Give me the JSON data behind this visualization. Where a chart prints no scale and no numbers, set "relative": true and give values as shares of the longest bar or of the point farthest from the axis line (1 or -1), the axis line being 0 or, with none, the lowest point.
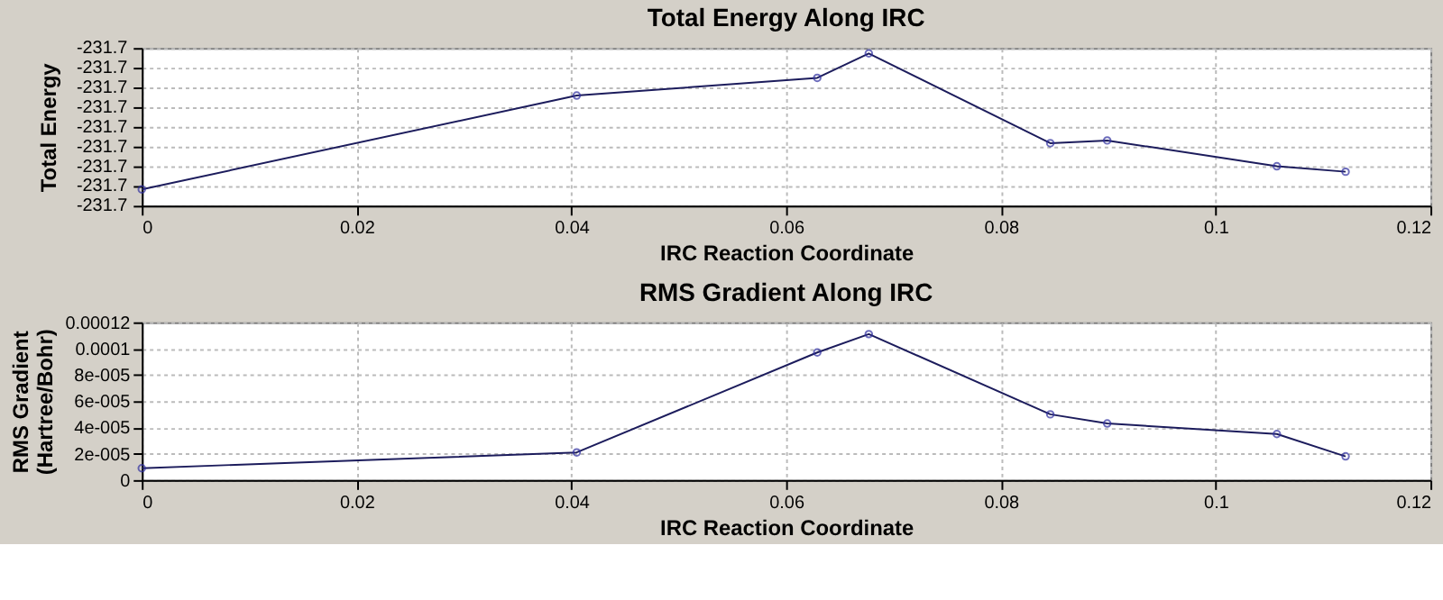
{
  "chart_data": [
    {
      "type": "line",
      "title": "Total Energy Along IRC",
      "xlabel": "IRC Reaction Coordinate",
      "ylabel": "Total Energy",
      "relative": true,
      "annotations": [
        "-231.7",
        "-231.7",
        "-231.7",
        "-231.7",
        "-231.7",
        "-231.7",
        "-231.7",
        "-231.7",
        "-231.7"
      ],
      "x": [
        0,
        0.0405,
        0.0629,
        0.0677,
        0.0846,
        0.0899,
        0.1057,
        0.1121
      ],
      "series": [
        {
          "color": "#1c1c5c",
          "values": [
            0,
            0.69,
            0.82,
            1,
            0.34,
            0.36,
            0.17,
            0.13
          ]
        }
      ],
      "xlim": [
        0,
        0.12
      ],
      "xticks": [
        0,
        0.02,
        0.04,
        0.06,
        0.08,
        0.1,
        0.12
      ],
      "grid": true,
      "marker": "circle",
      "line_style": "solid"
    },
    {
      "type": "line",
      "title": "RMS Gradient Along IRC",
      "xlabel": "IRC Reaction Coordinate",
      "ylabel": "RMS Gradient (Hartree/Bohr)",
      "x": [
        0,
        0.0405,
        0.0629,
        0.0677,
        0.0846,
        0.0899,
        0.1057,
        0.1121
      ],
      "series": [
        {
          "color": "#1c1c5c",
          "values": [
            9e-06,
            2.1e-05,
            9.7e-05,
            0.000111,
            5e-05,
            4.3e-05,
            3.5e-05,
            1.8e-05
          ]
        }
      ],
      "xlim": [
        0,
        0.12
      ],
      "xticks": [
        0,
        0.02,
        0.04,
        0.06,
        0.08,
        0.1,
        0.12
      ],
      "ylim": [
        0,
        0.00012
      ],
      "yticks": [
        0,
        {
          "value": 2e-05,
          "label": "2e-005"
        },
        {
          "value": 4e-05,
          "label": "4e-005"
        },
        {
          "value": 6e-05,
          "label": "6e-005"
        },
        {
          "value": 8e-05,
          "label": "8e-005"
        },
        0.0001,
        0.00012
      ],
      "grid": true,
      "marker": "circle",
      "line_style": "solid"
    }
  ]
}
